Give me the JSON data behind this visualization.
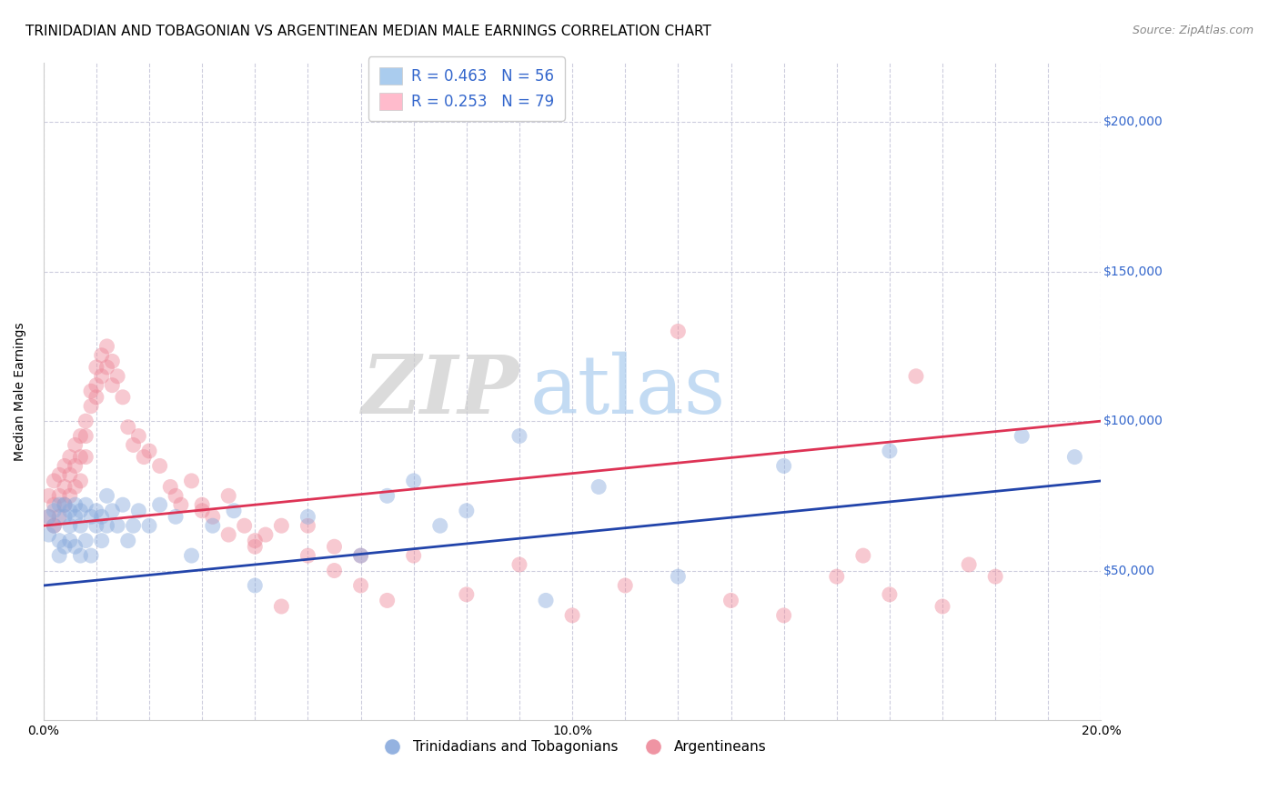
{
  "title": "TRINIDADIAN AND TOBAGONIAN VS ARGENTINEAN MEDIAN MALE EARNINGS CORRELATION CHART",
  "source": "Source: ZipAtlas.com",
  "ylabel": "Median Male Earnings",
  "xlim": [
    0.0,
    0.2
  ],
  "ylim": [
    0,
    220000
  ],
  "yticks": [
    50000,
    100000,
    150000,
    200000
  ],
  "ytick_labels": [
    "$50,000",
    "$100,000",
    "$150,000",
    "$200,000"
  ],
  "background_color": "#ffffff",
  "grid_color": "#ccccdd",
  "blue_color": "#88aadd",
  "pink_color": "#ee8899",
  "blue_line_color": "#2244aa",
  "pink_line_color": "#dd3355",
  "legend_blue_label": "R = 0.463   N = 56",
  "legend_pink_label": "R = 0.253   N = 79",
  "legend_blue_patch": "#aaccee",
  "legend_pink_patch": "#ffbbcc",
  "watermark_zip": "ZIP",
  "watermark_atlas": "atlas",
  "blue_scatter_x": [
    0.001,
    0.001,
    0.002,
    0.002,
    0.003,
    0.003,
    0.003,
    0.004,
    0.004,
    0.004,
    0.005,
    0.005,
    0.005,
    0.006,
    0.006,
    0.006,
    0.007,
    0.007,
    0.007,
    0.008,
    0.008,
    0.009,
    0.009,
    0.01,
    0.01,
    0.011,
    0.011,
    0.012,
    0.012,
    0.013,
    0.014,
    0.015,
    0.016,
    0.017,
    0.018,
    0.02,
    0.022,
    0.025,
    0.028,
    0.032,
    0.036,
    0.04,
    0.05,
    0.06,
    0.065,
    0.07,
    0.075,
    0.08,
    0.09,
    0.095,
    0.105,
    0.12,
    0.14,
    0.16,
    0.185,
    0.195
  ],
  "blue_scatter_y": [
    68000,
    62000,
    70000,
    65000,
    72000,
    60000,
    55000,
    68000,
    72000,
    58000,
    65000,
    70000,
    60000,
    68000,
    72000,
    58000,
    65000,
    70000,
    55000,
    72000,
    60000,
    68000,
    55000,
    65000,
    70000,
    68000,
    60000,
    75000,
    65000,
    70000,
    65000,
    72000,
    60000,
    65000,
    70000,
    65000,
    72000,
    68000,
    55000,
    65000,
    70000,
    45000,
    68000,
    55000,
    75000,
    80000,
    65000,
    70000,
    95000,
    40000,
    78000,
    48000,
    85000,
    90000,
    95000,
    88000
  ],
  "pink_scatter_x": [
    0.001,
    0.001,
    0.002,
    0.002,
    0.002,
    0.003,
    0.003,
    0.003,
    0.004,
    0.004,
    0.004,
    0.005,
    0.005,
    0.005,
    0.006,
    0.006,
    0.006,
    0.007,
    0.007,
    0.007,
    0.008,
    0.008,
    0.008,
    0.009,
    0.009,
    0.01,
    0.01,
    0.01,
    0.011,
    0.011,
    0.012,
    0.012,
    0.013,
    0.013,
    0.014,
    0.015,
    0.016,
    0.017,
    0.018,
    0.019,
    0.02,
    0.022,
    0.024,
    0.026,
    0.028,
    0.03,
    0.032,
    0.035,
    0.038,
    0.04,
    0.042,
    0.045,
    0.05,
    0.055,
    0.06,
    0.07,
    0.08,
    0.09,
    0.1,
    0.11,
    0.12,
    0.13,
    0.14,
    0.15,
    0.155,
    0.16,
    0.165,
    0.17,
    0.175,
    0.18,
    0.025,
    0.03,
    0.035,
    0.04,
    0.045,
    0.05,
    0.055,
    0.06,
    0.065
  ],
  "pink_scatter_y": [
    75000,
    68000,
    80000,
    72000,
    65000,
    82000,
    75000,
    68000,
    85000,
    78000,
    72000,
    88000,
    82000,
    75000,
    92000,
    85000,
    78000,
    95000,
    88000,
    80000,
    100000,
    95000,
    88000,
    110000,
    105000,
    118000,
    112000,
    108000,
    122000,
    115000,
    125000,
    118000,
    120000,
    112000,
    115000,
    108000,
    98000,
    92000,
    95000,
    88000,
    90000,
    85000,
    78000,
    72000,
    80000,
    72000,
    68000,
    75000,
    65000,
    60000,
    62000,
    38000,
    65000,
    58000,
    55000,
    55000,
    42000,
    52000,
    35000,
    45000,
    130000,
    40000,
    35000,
    48000,
    55000,
    42000,
    115000,
    38000,
    52000,
    48000,
    75000,
    70000,
    62000,
    58000,
    65000,
    55000,
    50000,
    45000,
    40000
  ],
  "blue_trend_x0": 0.0,
  "blue_trend_x1": 0.2,
  "blue_trend_y0": 45000,
  "blue_trend_y1": 80000,
  "pink_trend_x0": 0.0,
  "pink_trend_x1": 0.2,
  "pink_trend_y0": 65000,
  "pink_trend_y1": 100000,
  "title_fontsize": 11,
  "tick_fontsize": 10,
  "source_fontsize": 9,
  "axis_label_fontsize": 10
}
